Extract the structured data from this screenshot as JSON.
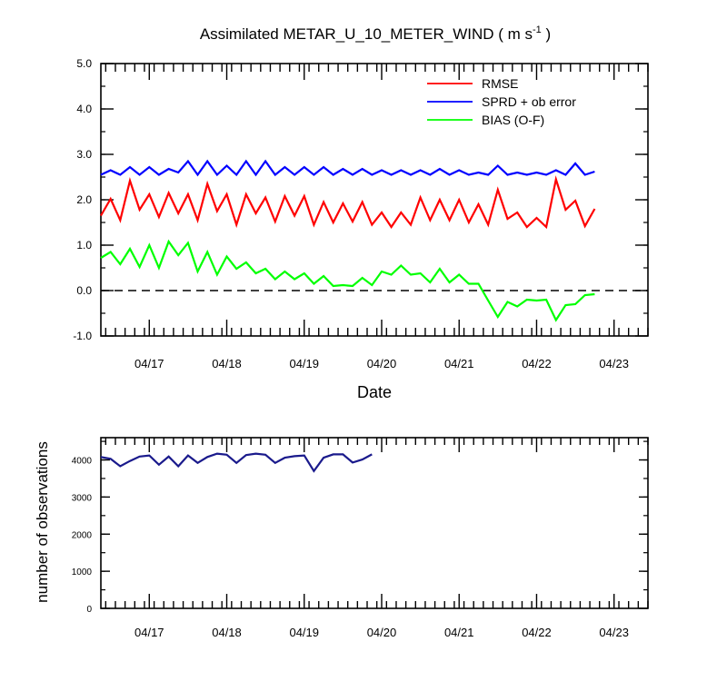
{
  "chart_data": [
    {
      "type": "line",
      "title": "Assimilated METAR_U_10_METER_WIND ( m s",
      "title_sup": "-1",
      "title_end": " )",
      "xlabel": "Date",
      "ylabel": "",
      "ylim": [
        -1.0,
        5.0
      ],
      "yticks": [
        "-1.0",
        "0.0",
        "1.0",
        "2.0",
        "3.0",
        "4.0",
        "5.0"
      ],
      "xlim": [
        0,
        28.25
      ],
      "xticks": [
        {
          "x": 2.5,
          "label": "04/17"
        },
        {
          "x": 6.5,
          "label": "04/18"
        },
        {
          "x": 10.5,
          "label": "04/19"
        },
        {
          "x": 14.5,
          "label": "04/20"
        },
        {
          "x": 18.5,
          "label": "04/21"
        },
        {
          "x": 22.5,
          "label": "04/22"
        },
        {
          "x": 26.5,
          "label": "04/23"
        }
      ],
      "reference_line": 0.0,
      "legend_position": "top-right",
      "series": [
        {
          "name": "RMSE",
          "color": "#ff0000",
          "values": [
            1.65,
            2.02,
            1.55,
            2.42,
            1.78,
            2.12,
            1.62,
            2.15,
            1.7,
            2.12,
            1.55,
            2.35,
            1.75,
            2.12,
            1.45,
            2.12,
            1.7,
            2.05,
            1.52,
            2.08,
            1.65,
            2.08,
            1.45,
            1.95,
            1.5,
            1.92,
            1.52,
            1.95,
            1.45,
            1.72,
            1.4,
            1.72,
            1.45,
            2.05,
            1.55,
            2.0,
            1.55,
            2.0,
            1.5,
            1.9,
            1.45,
            2.22,
            1.58,
            1.72,
            1.4,
            1.6,
            1.4,
            2.45,
            1.78,
            1.98,
            1.42,
            1.8
          ]
        },
        {
          "name": "SPRD + ob error",
          "color": "#0000ff",
          "values": [
            2.55,
            2.65,
            2.55,
            2.72,
            2.55,
            2.72,
            2.55,
            2.68,
            2.6,
            2.85,
            2.55,
            2.85,
            2.55,
            2.75,
            2.55,
            2.85,
            2.55,
            2.85,
            2.55,
            2.72,
            2.55,
            2.72,
            2.55,
            2.72,
            2.55,
            2.68,
            2.55,
            2.68,
            2.55,
            2.65,
            2.55,
            2.65,
            2.55,
            2.65,
            2.55,
            2.68,
            2.55,
            2.65,
            2.55,
            2.6,
            2.55,
            2.75,
            2.55,
            2.6,
            2.55,
            2.6,
            2.55,
            2.65,
            2.55,
            2.8,
            2.55,
            2.62
          ]
        },
        {
          "name": "BIAS (O-F)",
          "color": "#00ff00",
          "values": [
            0.72,
            0.85,
            0.58,
            0.92,
            0.52,
            1.0,
            0.5,
            1.08,
            0.78,
            1.05,
            0.42,
            0.85,
            0.35,
            0.75,
            0.48,
            0.62,
            0.38,
            0.48,
            0.25,
            0.42,
            0.25,
            0.38,
            0.15,
            0.32,
            0.1,
            0.12,
            0.1,
            0.28,
            0.12,
            0.42,
            0.35,
            0.55,
            0.35,
            0.38,
            0.18,
            0.48,
            0.18,
            0.35,
            0.15,
            0.15,
            -0.22,
            -0.58,
            -0.25,
            -0.35,
            -0.2,
            -0.22,
            -0.2,
            -0.65,
            -0.32,
            -0.3,
            -0.1,
            -0.08
          ]
        }
      ]
    },
    {
      "type": "line",
      "title": "",
      "xlabel": "",
      "ylabel": "number of observations",
      "ylim": [
        0,
        4600
      ],
      "yticks": [
        "0",
        "1000",
        "2000",
        "3000",
        "4000"
      ],
      "xlim": [
        0,
        28.25
      ],
      "xticks": [
        {
          "x": 2.5,
          "label": "04/17"
        },
        {
          "x": 6.5,
          "label": "04/18"
        },
        {
          "x": 10.5,
          "label": "04/19"
        },
        {
          "x": 14.5,
          "label": "04/20"
        },
        {
          "x": 18.5,
          "label": "04/21"
        },
        {
          "x": 22.5,
          "label": "04/22"
        },
        {
          "x": 26.5,
          "label": "04/23"
        }
      ],
      "series": [
        {
          "color": "#1a1a8c",
          "values": [
            4080,
            4030,
            3830,
            3970,
            4090,
            4120,
            3870,
            4090,
            3830,
            4120,
            3920,
            4080,
            4170,
            4140,
            3920,
            4130,
            4170,
            4140,
            3920,
            4060,
            4100,
            4120,
            3700,
            4060,
            4150,
            4150,
            3930,
            4010,
            4150
          ]
        }
      ]
    }
  ]
}
